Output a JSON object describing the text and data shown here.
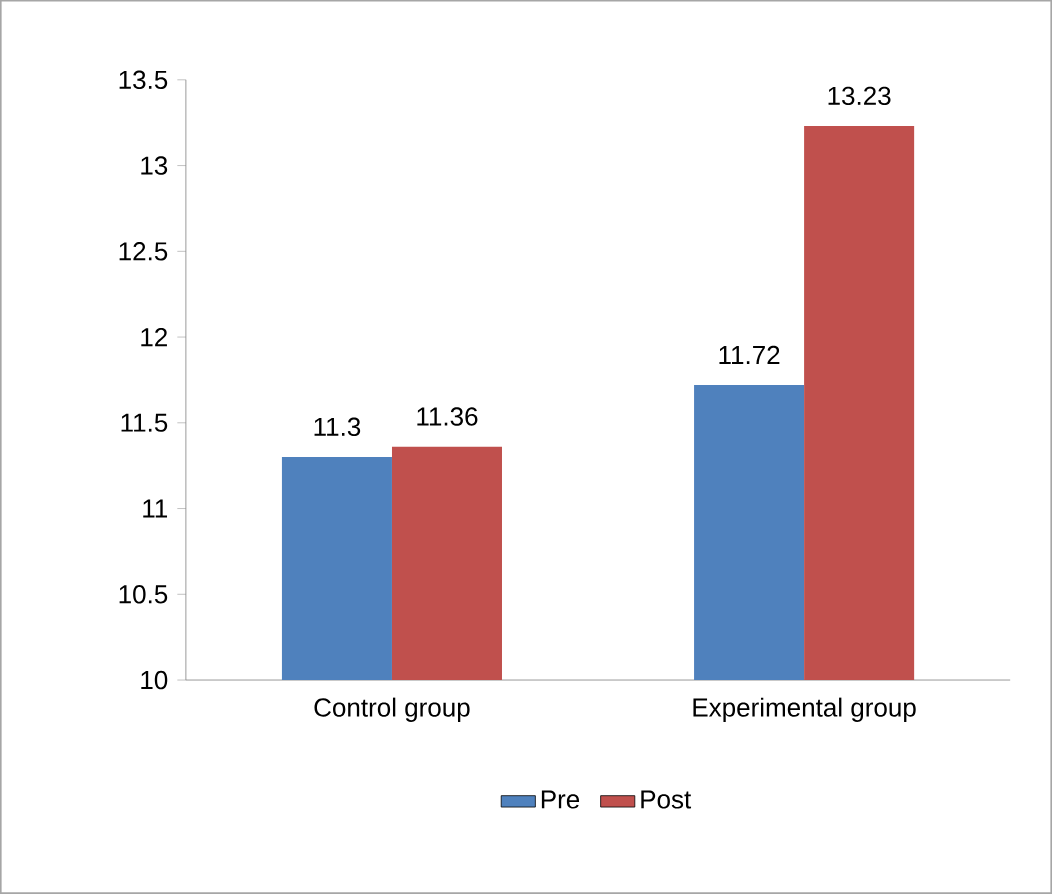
{
  "chart_data": {
    "type": "bar",
    "categories": [
      "Control group",
      "Experimental group"
    ],
    "series": [
      {
        "name": "Pre",
        "color": "#4f81bd",
        "values": [
          11.3,
          11.72
        ]
      },
      {
        "name": "Post",
        "color": "#c0504d",
        "values": [
          11.36,
          13.23
        ]
      }
    ],
    "ylim": [
      10,
      13.5
    ],
    "yticks": [
      10,
      10.5,
      11,
      11.5,
      12,
      12.5,
      13,
      13.5
    ],
    "data_labels": true,
    "legend": "bottom",
    "grid": false
  }
}
